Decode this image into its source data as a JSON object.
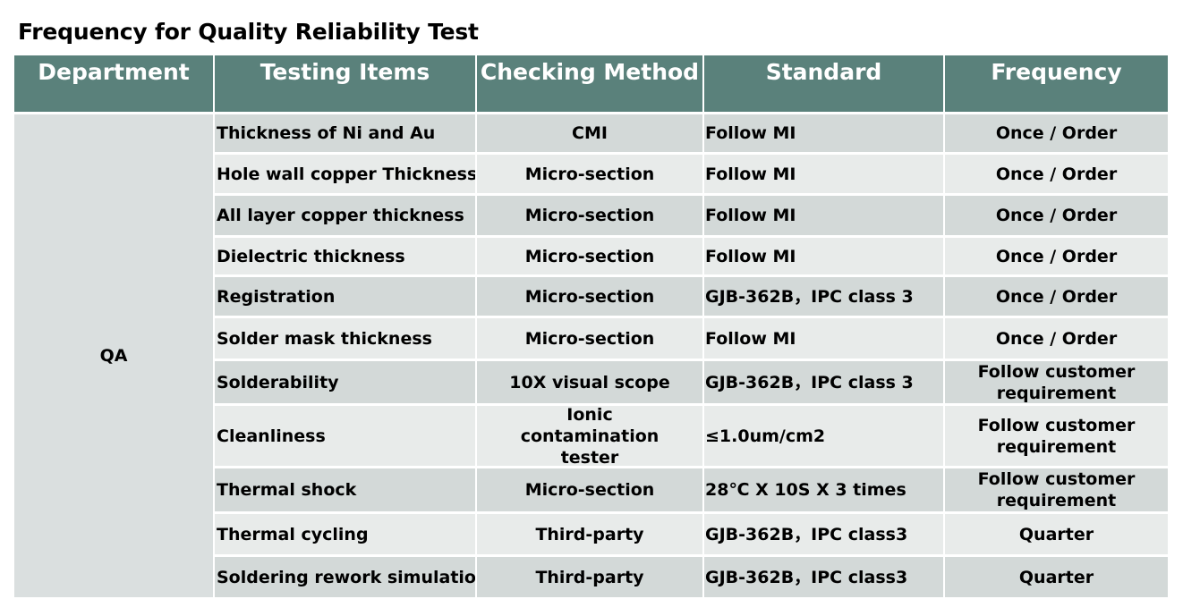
{
  "title": "Frequency for Quality Reliability Test",
  "table": {
    "headers": [
      "Department",
      "Testing Items",
      "Checking Method",
      "Standard",
      "Frequency"
    ],
    "department": "QA",
    "rows": [
      {
        "item": "Thickness of Ni and Au",
        "method": "CMI",
        "standard": "Follow MI",
        "frequency": "Once / Order"
      },
      {
        "item": "Hole wall copper Thickness",
        "method": "Micro-section",
        "standard": "Follow MI",
        "frequency": "Once / Order"
      },
      {
        "item": "All layer copper thickness",
        "method": "Micro-section",
        "standard": "Follow MI",
        "frequency": "Once / Order"
      },
      {
        "item": "Dielectric thickness",
        "method": "Micro-section",
        "standard": "Follow MI",
        "frequency": "Once / Order"
      },
      {
        "item": "Registration",
        "method": "Micro-section",
        "standard": "GJB-362B，IPC class 3",
        "frequency": "Once / Order"
      },
      {
        "item": "Solder mask thickness",
        "method": "Micro-section",
        "standard": "Follow MI",
        "frequency": "Once / Order"
      },
      {
        "item": "Solderability",
        "method": "10X visual scope",
        "standard": "GJB-362B，IPC class 3",
        "frequency": "Follow customer requirement"
      },
      {
        "item": "Cleanliness",
        "method": "Ionic contamination tester",
        "standard": "≤1.0um/cm2",
        "frequency": "Follow customer requirement"
      },
      {
        "item": "Thermal shock",
        "method": "Micro-section",
        "standard": "28℃ X 10S X 3 times",
        "frequency": "Follow customer requirement"
      },
      {
        "item": "Thermal cycling",
        "method": "Third-party",
        "standard": "GJB-362B，IPC class3",
        "frequency": "Quarter"
      },
      {
        "item": "Soldering rework simulation",
        "method": "Third-party",
        "standard": "GJB-362B，IPC class3",
        "frequency": "Quarter"
      }
    ]
  },
  "colors": {
    "header_bg": "#5a817b",
    "header_text": "#ffffff",
    "row_dark": "#d3d9d8",
    "row_light": "#e8ebea",
    "department_bg": "#dadfdf"
  }
}
